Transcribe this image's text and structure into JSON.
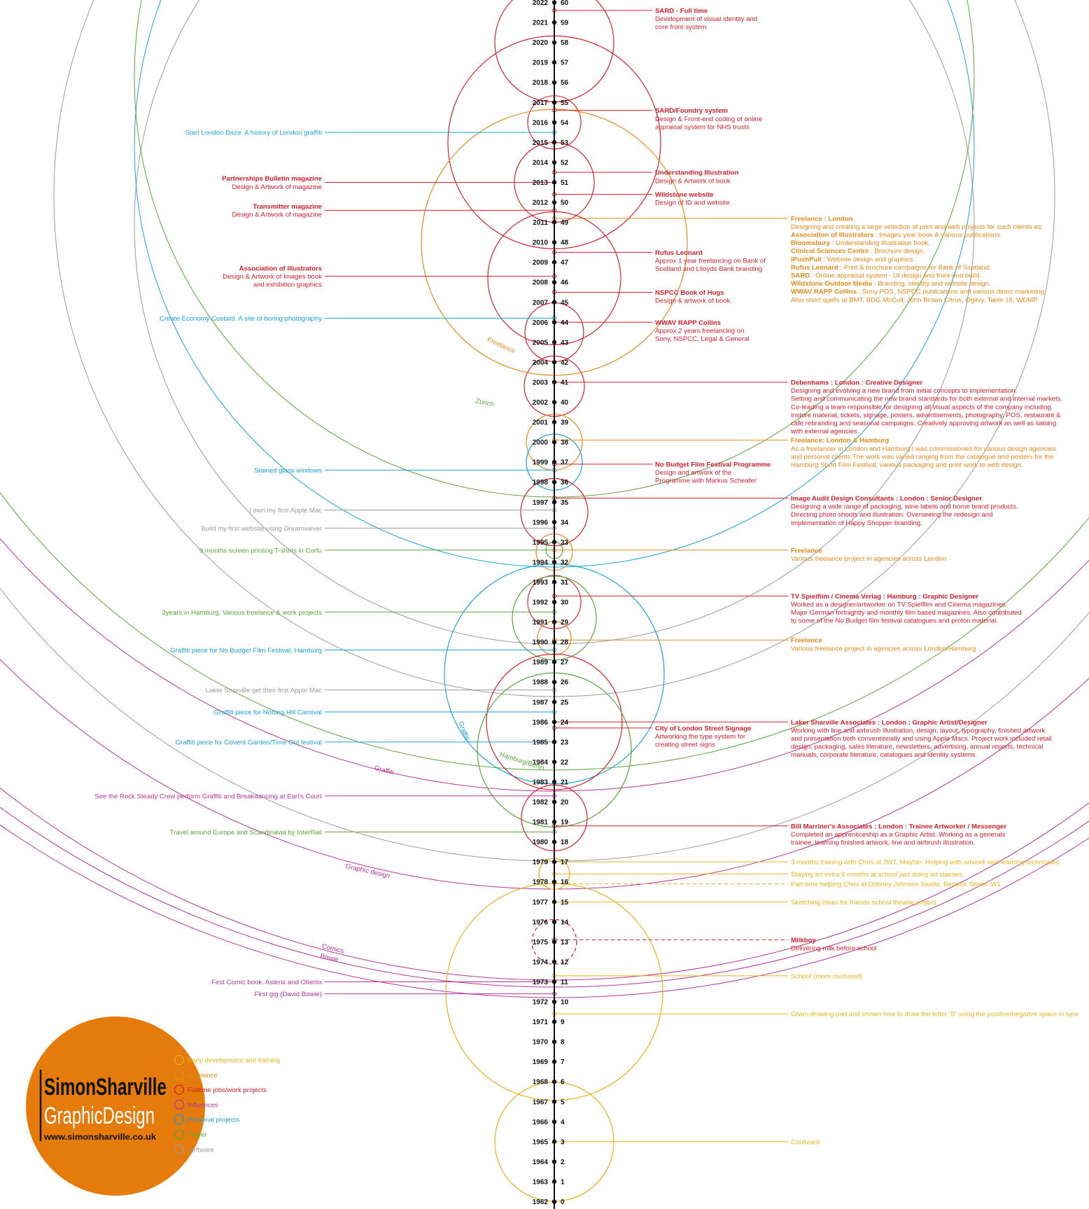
{
  "colors": {
    "early": "#e8b21a",
    "freelance": "#e48a1b",
    "fulltime": "#d4202c",
    "influences": "#b7339a",
    "personal": "#1aa3d8",
    "travel": "#5aa63a",
    "software": "#9a9a9a",
    "logo": "#e57b0b",
    "axis": "#111111"
  },
  "timeline": {
    "start_year": 1962,
    "end_year": 2022
  },
  "logo": {
    "line1": "SimonSharville",
    "line2": "GraphicDesign",
    "url": "www.simonsharville.co.uk"
  },
  "legend": [
    {
      "key": "early",
      "label": "Early development and training"
    },
    {
      "key": "freelance",
      "label": "Freelance"
    },
    {
      "key": "fulltime",
      "label": "Fulltime jobs/work projects"
    },
    {
      "key": "influences",
      "label": "Influences"
    },
    {
      "key": "personal",
      "label": "Personal projects"
    },
    {
      "key": "travel",
      "label": "Travel"
    },
    {
      "key": "software",
      "label": "Software"
    }
  ],
  "arc_labels": [
    {
      "text": "Freelance",
      "color": "freelance"
    },
    {
      "text": "Zurich",
      "color": "travel"
    },
    {
      "text": "Graffiti",
      "color": "personal"
    },
    {
      "text": "Hamburg/Berlin",
      "color": "travel"
    },
    {
      "text": "Graffiti",
      "color": "influences"
    },
    {
      "text": "Graphic design",
      "color": "influences"
    },
    {
      "text": "Comics",
      "color": "influences"
    },
    {
      "text": "Bowie",
      "color": "influences"
    }
  ],
  "left_labels": [
    {
      "year": 2015.5,
      "color": "personal",
      "text": [
        "Start London Daze. A history of London graffiti"
      ]
    },
    {
      "year": 2013,
      "color": "fulltime",
      "text": [
        "Partnerships Bulletin magazine",
        "Design & Artwork of magazine"
      ]
    },
    {
      "year": 2011.6,
      "color": "fulltime",
      "text": [
        "Transmitter magazine",
        "Design & Artwork of magazine"
      ]
    },
    {
      "year": 2008.3,
      "color": "fulltime",
      "text": [
        "Association of Illustrators",
        "Design & Artwork of Images book",
        "and exhibition graphics"
      ]
    },
    {
      "year": 2006.2,
      "color": "personal",
      "text": [
        "Create Economy Custard. A site of boring photography"
      ]
    },
    {
      "year": 1998.6,
      "color": "personal",
      "text": [
        "Stained glass windows"
      ]
    },
    {
      "year": 1996.6,
      "color": "software",
      "text": [
        "I own my first Apple Mac"
      ]
    },
    {
      "year": 1995.7,
      "color": "software",
      "text": [
        "Build my first website using Dreamwever"
      ]
    },
    {
      "year": 1994.6,
      "color": "travel",
      "text": [
        "9 months screen printing T-shirts in Corfu"
      ]
    },
    {
      "year": 1991.5,
      "color": "travel",
      "text": [
        "3years in Hamburg, Various freelance & work projects"
      ]
    },
    {
      "year": 1989.6,
      "color": "personal",
      "text": [
        "Graffiti piece for No Budget Film Festival, Hamburg"
      ]
    },
    {
      "year": 1987.6,
      "color": "software",
      "text": [
        "Laker Sharville get their first Apple Mac"
      ]
    },
    {
      "year": 1986.5,
      "color": "personal",
      "text": [
        "Graffiti piece for Notting Hill Carnival"
      ]
    },
    {
      "year": 1985,
      "color": "personal",
      "text": [
        "Graffiti piece for Covent Garden/Time Out festival"
      ]
    },
    {
      "year": 1982.3,
      "color": "influences",
      "text": [
        "See the Rock Steady Crew perform Graffiti and Breakdancing at Earl's Court"
      ]
    },
    {
      "year": 1980.5,
      "color": "travel",
      "text": [
        "Travel around Europe and Scandinavia by InterRail"
      ]
    },
    {
      "year": 1973,
      "color": "influences",
      "text": [
        "First Comic book. Asterix and Oberlix"
      ]
    },
    {
      "year": 1972.4,
      "color": "influences",
      "text": [
        "First gig (David Bowie)"
      ]
    }
  ],
  "mid_labels": [
    {
      "year": 2021.6,
      "color": "fulltime",
      "text": [
        "SARD - Full time",
        "Development of visual identity and",
        "core front system"
      ]
    },
    {
      "year": 2016.6,
      "color": "fulltime",
      "text": [
        "SARD/Foundry system",
        "Design & Front-end coding of online",
        "appraisal system for NHS trusts"
      ]
    },
    {
      "year": 2013.5,
      "color": "fulltime",
      "text": [
        "Understanding Illustration",
        "Design & Artwork of book"
      ]
    },
    {
      "year": 2012.4,
      "color": "fulltime",
      "text": [
        "Wildstone website",
        "Design of ID and website"
      ]
    },
    {
      "year": 2009.5,
      "color": "fulltime",
      "text": [
        "Rufus Leonard",
        "Approx 1 year freelancing on Bank of",
        "Scotland and Llloyds Bank branding"
      ]
    },
    {
      "year": 2007.5,
      "color": "fulltime",
      "text": [
        "NSPCC Book of Hugs",
        "Design & artwork of book."
      ]
    },
    {
      "year": 2006,
      "color": "fulltime",
      "text": [
        "WWAV RAPP Collins",
        "Approx 2 years freelancing on",
        "Sony, NSPCC, Legal & General"
      ]
    },
    {
      "year": 1998.9,
      "color": "fulltime",
      "text": [
        "No Budget Film Festival Programme",
        "Design and artwork of the",
        "Programme with Markus Scheafer"
      ]
    },
    {
      "year": 1985.7,
      "color": "fulltime",
      "text": [
        "City of London Street Signage",
        "Artworking the type system for",
        "creating street signs"
      ]
    }
  ],
  "right_labels": [
    {
      "year": 2011.2,
      "color": "freelance",
      "text": [
        "Freelance : London",
        "Designing and creating a large selection of print and web projects for such clients as:",
        "Association of Illustrators : Images year book & various publications.",
        "Bloomsbury : Understanding Illustration book.",
        "Clinical Sciences Centre : Brochure design.",
        "iPushPull : Website design and graphics.",
        "Rufus Leonard : Print & brochure campaigns for Bank of Scotland.",
        "SARD : Online appraisal system - UI design and front-end build.",
        "Wildstone Outdoor Media : Branding, identity and website design.",
        "WWAV RAPP Collins : Sony POS, NSPCC publications and various direct marketing.",
        "Also short spells at BMT, BDG McColl, John Brown Citrus, Ogilvy, Table 19, WDMP."
      ]
    },
    {
      "year": 2003,
      "color": "fulltime",
      "text": [
        "Debenhams : London : Creative Designer",
        "Designing and evolving a new brand from initial concepts to implementation.",
        "Setting and communicating the new brand standards for both external and internal markets.",
        "Co-leading a team responsible for designing all visual aspects of the company including",
        "instore material, tickets, signage, posters, advertisements, photography, POS, restaurant &",
        "cafe rebranding and seasonal campaigns. Creatively approving artwork as well as liaising",
        "with external agencies."
      ]
    },
    {
      "year": 2000.1,
      "color": "freelance",
      "text": [
        "Freelance: London & Hamburg",
        "As a freelancer in London and Hamburg I was commissioned for various design agencies",
        "and personal clients.The work was varied ranging from the catalogue and posters for the",
        "Hamburg Short Film Festival, various packaging and print work to web design."
      ]
    },
    {
      "year": 1997.2,
      "color": "fulltime",
      "text": [
        "Image Audit Design Consultants : London : Senior Designer",
        "Designing a wide range of packaging, wine labels and home brand products.",
        "Directing photo shoots and illustration. Overseeing the redesign and",
        "implementation of Happy Shopper branding."
      ]
    },
    {
      "year": 1994.6,
      "color": "freelance",
      "text": [
        "Freelance",
        "Various freelance project in agencies across London"
      ]
    },
    {
      "year": 1992.3,
      "color": "fulltime",
      "text": [
        "TV Spielfilm / Cinema Verlag : Hamburg : Graphic Designer",
        "Worked as a designer/artworker on TV Spielfilm and Cinema magazines.",
        "Major German fortnightly and monthly film based magazines. Also contributed",
        "to some of the No Budget film festival catalogues and proton material."
      ]
    },
    {
      "year": 1990.1,
      "color": "freelance",
      "text": [
        "Freelance",
        "Various freelance project in agencies across London/Hamburg"
      ]
    },
    {
      "year": 1986,
      "color": "fulltime",
      "text": [
        "Laker Sharville Associates : London : Graphic Artist/Designer",
        "Working with line and airbrush illustration, design, layout, typography, finished artwork",
        "and presentation both conventionally and using Apple Macs. Project work included retail",
        "design, packaging, sales literature, newsletters, advertising, annual reports, technical",
        "manuals, corporate literature, catalogues and identity systems."
      ]
    },
    {
      "year": 1980.8,
      "color": "fulltime",
      "text": [
        "Bill Marriner's Associates : London : Trainee Artworker / Messenger",
        "Completed an apprenticeship as a Graphic Artist. Working as a generals",
        "trainee, learning finished artwork, line and airbrush illustration."
      ]
    },
    {
      "year": 1979,
      "color": "early",
      "text": [
        "3 months training with Chris at JWT, Mayfair. Helping with artwork and learning techniques."
      ]
    },
    {
      "year": 1978.4,
      "color": "early",
      "text": [
        "Staying an extra 6 months at school just doing art classes."
      ]
    },
    {
      "year": 1777.9,
      "color": "early",
      "text": []
    },
    {
      "year": 1977.9,
      "color": "early",
      "text": [
        "Part-time helping Chris at Dobney Johnson Studio, Berwick Street. W1"
      ]
    },
    {
      "year": 1977,
      "color": "early",
      "text": [
        "Sketching ideas for friends school theatre project."
      ]
    },
    {
      "year": 1975.1,
      "color": "fulltime",
      "text": [
        "Milkboy",
        "Delivering milk before school"
      ]
    },
    {
      "year": 1973.3,
      "color": "early",
      "text": [
        "School (more confused)"
      ]
    },
    {
      "year": 1971.4,
      "color": "early",
      "text": [
        "Given drawing pad and shown how to draw the letter 'S' using the positive/negative space in type"
      ]
    },
    {
      "year": 1965,
      "color": "early",
      "text": [
        "Confused"
      ]
    }
  ]
}
